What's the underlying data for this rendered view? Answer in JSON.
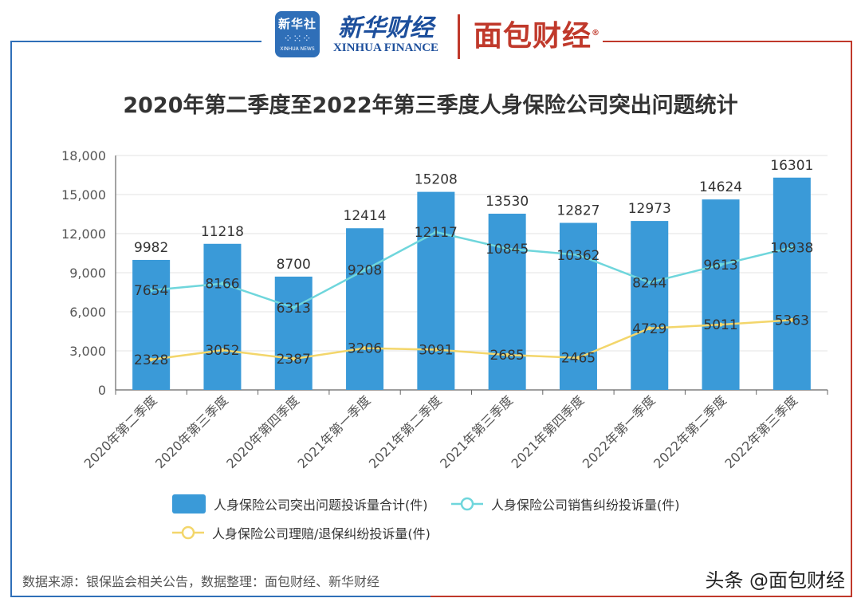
{
  "header": {
    "logo_text": "新华社",
    "logo_sub": "XINHUA NEWS",
    "brand1": "新华财经",
    "brand1_sub": "XINHUA FINANCE",
    "brand2": "面包财经",
    "brand2_mark": "®"
  },
  "title": "2020年第二季度至2022年第三季度人身保险公司突出问题统计",
  "source": "数据来源：银保监会相关公告，数据整理：面包财经、新华财经",
  "watermark": "头条 @面包财经",
  "legend": {
    "bar": "人身保险公司突出问题投诉量合计(件)",
    "sales": "人身保险公司销售纠纷投诉量(件)",
    "claims": "人身保险公司理赔/退保纠纷投诉量(件)"
  },
  "colors": {
    "bar": "#3a9ad8",
    "sales_line": "#6fd6dc",
    "claims_line": "#f3d66b",
    "frame_blue": "#2f6fb8",
    "frame_red": "#c0392b"
  },
  "chart_data": {
    "type": "bar",
    "title": "2020年第二季度至2022年第三季度人身保险公司突出问题统计",
    "categories": [
      "2020年第二季度",
      "2020年第三季度",
      "2020年第四季度",
      "2021年第一季度",
      "2021年第二季度",
      "2021年第三季度",
      "2021年第四季度",
      "2022年第一季度",
      "2022年第二季度",
      "2022年第三季度"
    ],
    "series": [
      {
        "name": "人身保险公司突出问题投诉量合计(件)",
        "type": "bar",
        "values": [
          9982,
          11218,
          8700,
          12414,
          15208,
          13530,
          12827,
          12973,
          14624,
          16301
        ]
      },
      {
        "name": "人身保险公司销售纠纷投诉量(件)",
        "type": "line",
        "values": [
          7654,
          8166,
          6313,
          9208,
          12117,
          10845,
          10362,
          8244,
          9613,
          10938
        ]
      },
      {
        "name": "人身保险公司理赔/退保纠纷投诉量(件)",
        "type": "line",
        "values": [
          2328,
          3052,
          2387,
          3206,
          3091,
          2685,
          2465,
          4729,
          5011,
          5363
        ]
      }
    ],
    "ylim": [
      0,
      18000
    ],
    "yticks": [
      "0",
      "3,000",
      "6,000",
      "9,000",
      "12,000",
      "15,000",
      "18,000"
    ],
    "ytick_values": [
      0,
      3000,
      6000,
      9000,
      12000,
      15000,
      18000
    ],
    "grid": true,
    "legend_position": "bottom"
  }
}
